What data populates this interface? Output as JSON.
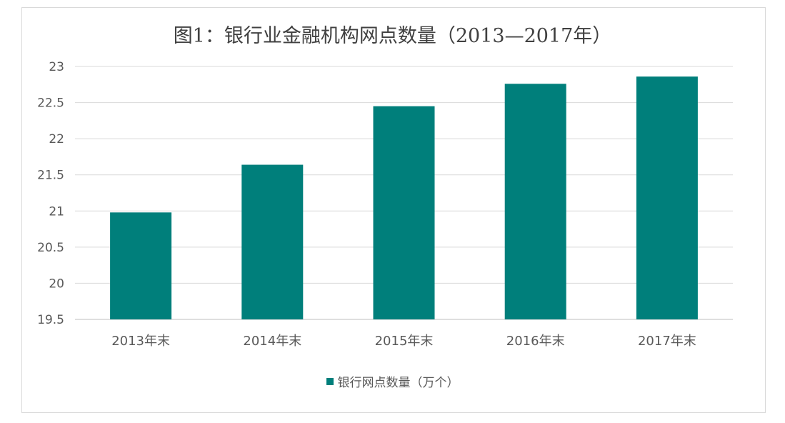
{
  "chart_data": {
    "type": "bar",
    "title": "图1：银行业金融机构网点数量（2013—2017年）",
    "categories": [
      "2013年末",
      "2014年末",
      "2015年末",
      "2016年末",
      "2017年末"
    ],
    "series": [
      {
        "name": "银行网点数量（万个）",
        "values": [
          20.98,
          21.64,
          22.45,
          22.76,
          22.86
        ],
        "color": "#007f7b"
      }
    ],
    "ylim": [
      19.5,
      23
    ],
    "yticks": [
      "19.5",
      "20",
      "20.5",
      "21",
      "21.5",
      "22",
      "22.5",
      "23"
    ],
    "grid": true,
    "legend_position": "bottom"
  }
}
